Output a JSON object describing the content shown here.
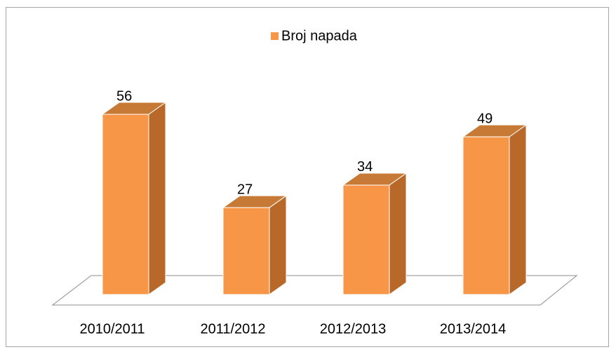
{
  "chart_data": {
    "type": "bar3d",
    "legend": "Broj napada",
    "color": "#f79646",
    "categories": [
      "2010/2011",
      "2011/2012",
      "2012/2013",
      "2013/2014"
    ],
    "values": [
      56,
      27,
      34,
      49
    ]
  }
}
